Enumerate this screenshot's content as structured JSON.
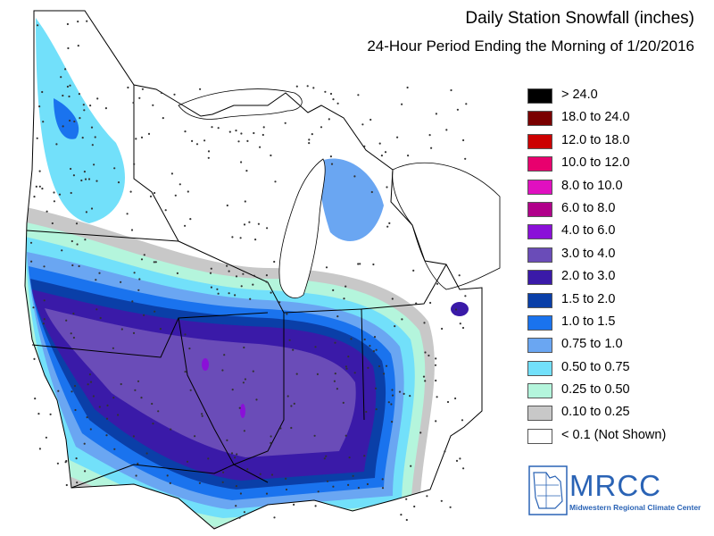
{
  "title": "Daily Station Snowfall (inches)",
  "subtitle": "24-Hour Period Ending the Morning of 1/20/2016",
  "legend": [
    {
      "label": "> 24.0",
      "color": "#000000"
    },
    {
      "label": "18.0 to 24.0",
      "color": "#7a0000"
    },
    {
      "label": "12.0 to 18.0",
      "color": "#cc0000"
    },
    {
      "label": "10.0 to 12.0",
      "color": "#e8006e"
    },
    {
      "label": "8.0 to 10.0",
      "color": "#e010c0"
    },
    {
      "label": "6.0 to 8.0",
      "color": "#b0008a"
    },
    {
      "label": "4.0 to 6.0",
      "color": "#8a10d8"
    },
    {
      "label": "3.0 to 4.0",
      "color": "#6a4cb8"
    },
    {
      "label": "2.0 to 3.0",
      "color": "#3a1aa8"
    },
    {
      "label": "1.5 to 2.0",
      "color": "#0a3fa8"
    },
    {
      "label": "1.0 to 1.5",
      "color": "#1a73ee"
    },
    {
      "label": "0.75 to 1.0",
      "color": "#6aa6f2"
    },
    {
      "label": "0.50 to 0.75",
      "color": "#72e0fa"
    },
    {
      "label": "0.25 to 0.50",
      "color": "#b4f5dc"
    },
    {
      "label": "0.10 to 0.25",
      "color": "#c8c8c8"
    },
    {
      "label": "< 0.1 (Not Shown)",
      "color": "#ffffff"
    }
  ],
  "logo": {
    "name": "MRCC",
    "full_name": "Midwestern Regional Climate Center",
    "icon": "midwest-states-outline-icon"
  }
}
